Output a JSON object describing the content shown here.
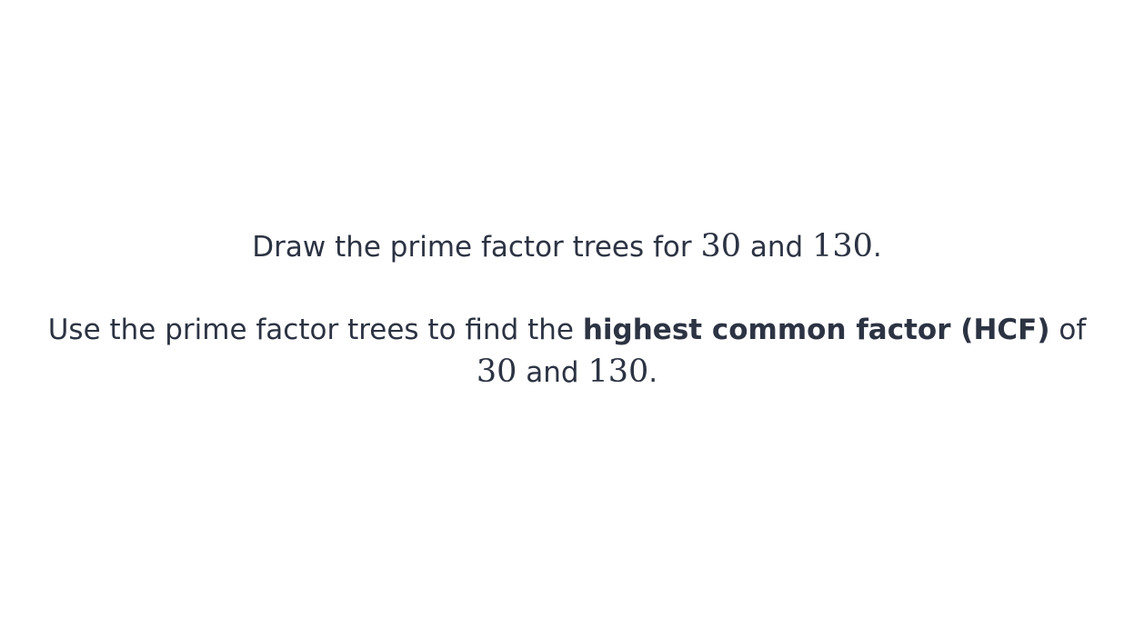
{
  "question": {
    "line1": {
      "text_before": "Draw the prime factor trees for ",
      "num1": "30",
      "text_mid": " and ",
      "num2": "130",
      "text_end": "."
    },
    "line2": {
      "text_before": "Use the prime factor trees to find the ",
      "bold_text": "highest common factor (HCF)",
      "text_after": " of"
    },
    "line3": {
      "num1": "30",
      "text_mid": " and ",
      "num2": "130",
      "text_end": "."
    }
  }
}
